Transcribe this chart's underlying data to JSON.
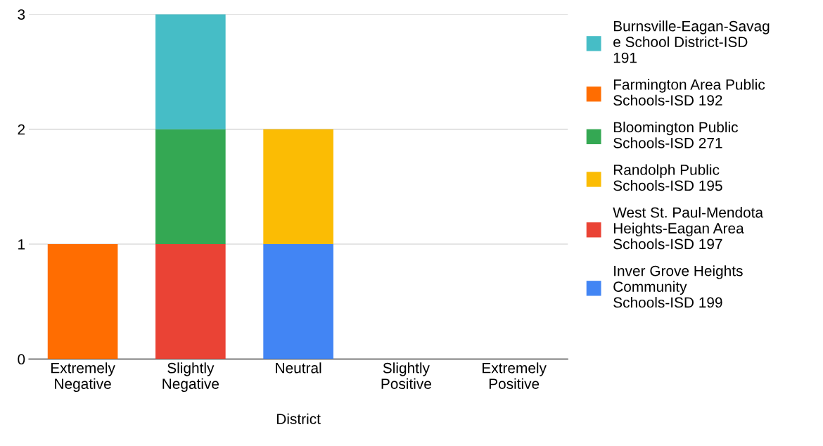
{
  "chart_data": {
    "type": "bar",
    "stacked": true,
    "xlabel": "District",
    "categories": [
      "Extremely\nNegative",
      "Slightly\nNegative",
      "Neutral",
      "Slightly\nPositive",
      "Extremely\nPositive"
    ],
    "series": [
      {
        "name": "Inver Grove Heights\nCommunity\nSchools-ISD 199",
        "color": "#4285f4",
        "values": [
          null,
          null,
          1,
          null,
          null
        ]
      },
      {
        "name": "West St. Paul-Mendota\nHeights-Eagan Area\nSchools-ISD 197",
        "color": "#ea4335",
        "values": [
          null,
          1,
          null,
          null,
          null
        ]
      },
      {
        "name": "Randolph Public\nSchools-ISD 195",
        "color": "#fbbc04",
        "values": [
          null,
          null,
          1,
          null,
          null
        ]
      },
      {
        "name": "Bloomington Public\nSchools-ISD 271",
        "color": "#34a853",
        "values": [
          null,
          1,
          null,
          null,
          null
        ]
      },
      {
        "name": "Farmington Area Public\nSchools-ISD 192",
        "color": "#ff6d01",
        "values": [
          1,
          null,
          null,
          null,
          null
        ]
      },
      {
        "name": "Burnsville-Eagan-Savag\ne School District-ISD\n191",
        "color": "#46bdc6",
        "values": [
          null,
          1,
          null,
          null,
          null
        ]
      }
    ],
    "ylim": [
      0,
      3
    ],
    "yticks": [
      0,
      1,
      2,
      3
    ],
    "grid": "y",
    "legend": "right"
  }
}
